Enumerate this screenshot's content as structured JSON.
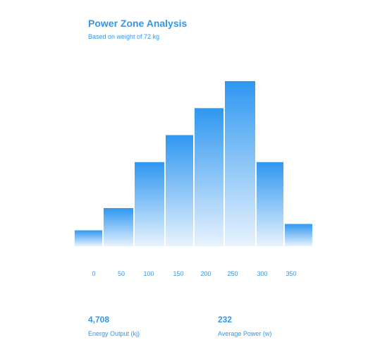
{
  "header": {
    "title": "Power Zone Analysis",
    "subtitle": "Based on weight of 72 kg"
  },
  "stats": {
    "energy": {
      "value": "4,708",
      "label": "Energy Output (kj)"
    },
    "power": {
      "value": "232",
      "label": "Average Power (w)"
    }
  },
  "colors": {
    "accent": "#2f97f0",
    "bar_top": "#2f97f0",
    "bar_bottom": "#e8f3fd"
  },
  "chart_data": {
    "type": "bar",
    "title": "Power Zone Analysis",
    "subtitle": "Based on weight of 72 kg",
    "xlabel": "",
    "ylabel": "",
    "x_ticks": [
      "0",
      "50",
      "100",
      "150",
      "200",
      "250",
      "300",
      "350"
    ],
    "bins": [
      {
        "start": 0,
        "end": 50,
        "value": 10
      },
      {
        "start": 50,
        "end": 100,
        "value": 24
      },
      {
        "start": 100,
        "end": 150,
        "value": 53
      },
      {
        "start": 150,
        "end": 200,
        "value": 70
      },
      {
        "start": 200,
        "end": 250,
        "value": 87
      },
      {
        "start": 250,
        "end": 300,
        "value": 104
      },
      {
        "start": 300,
        "end": 350,
        "value": 53
      },
      {
        "start": 350,
        "end": 400,
        "value": 14
      }
    ],
    "ylim": [
      0,
      104
    ],
    "grid": false,
    "legend": "none"
  }
}
